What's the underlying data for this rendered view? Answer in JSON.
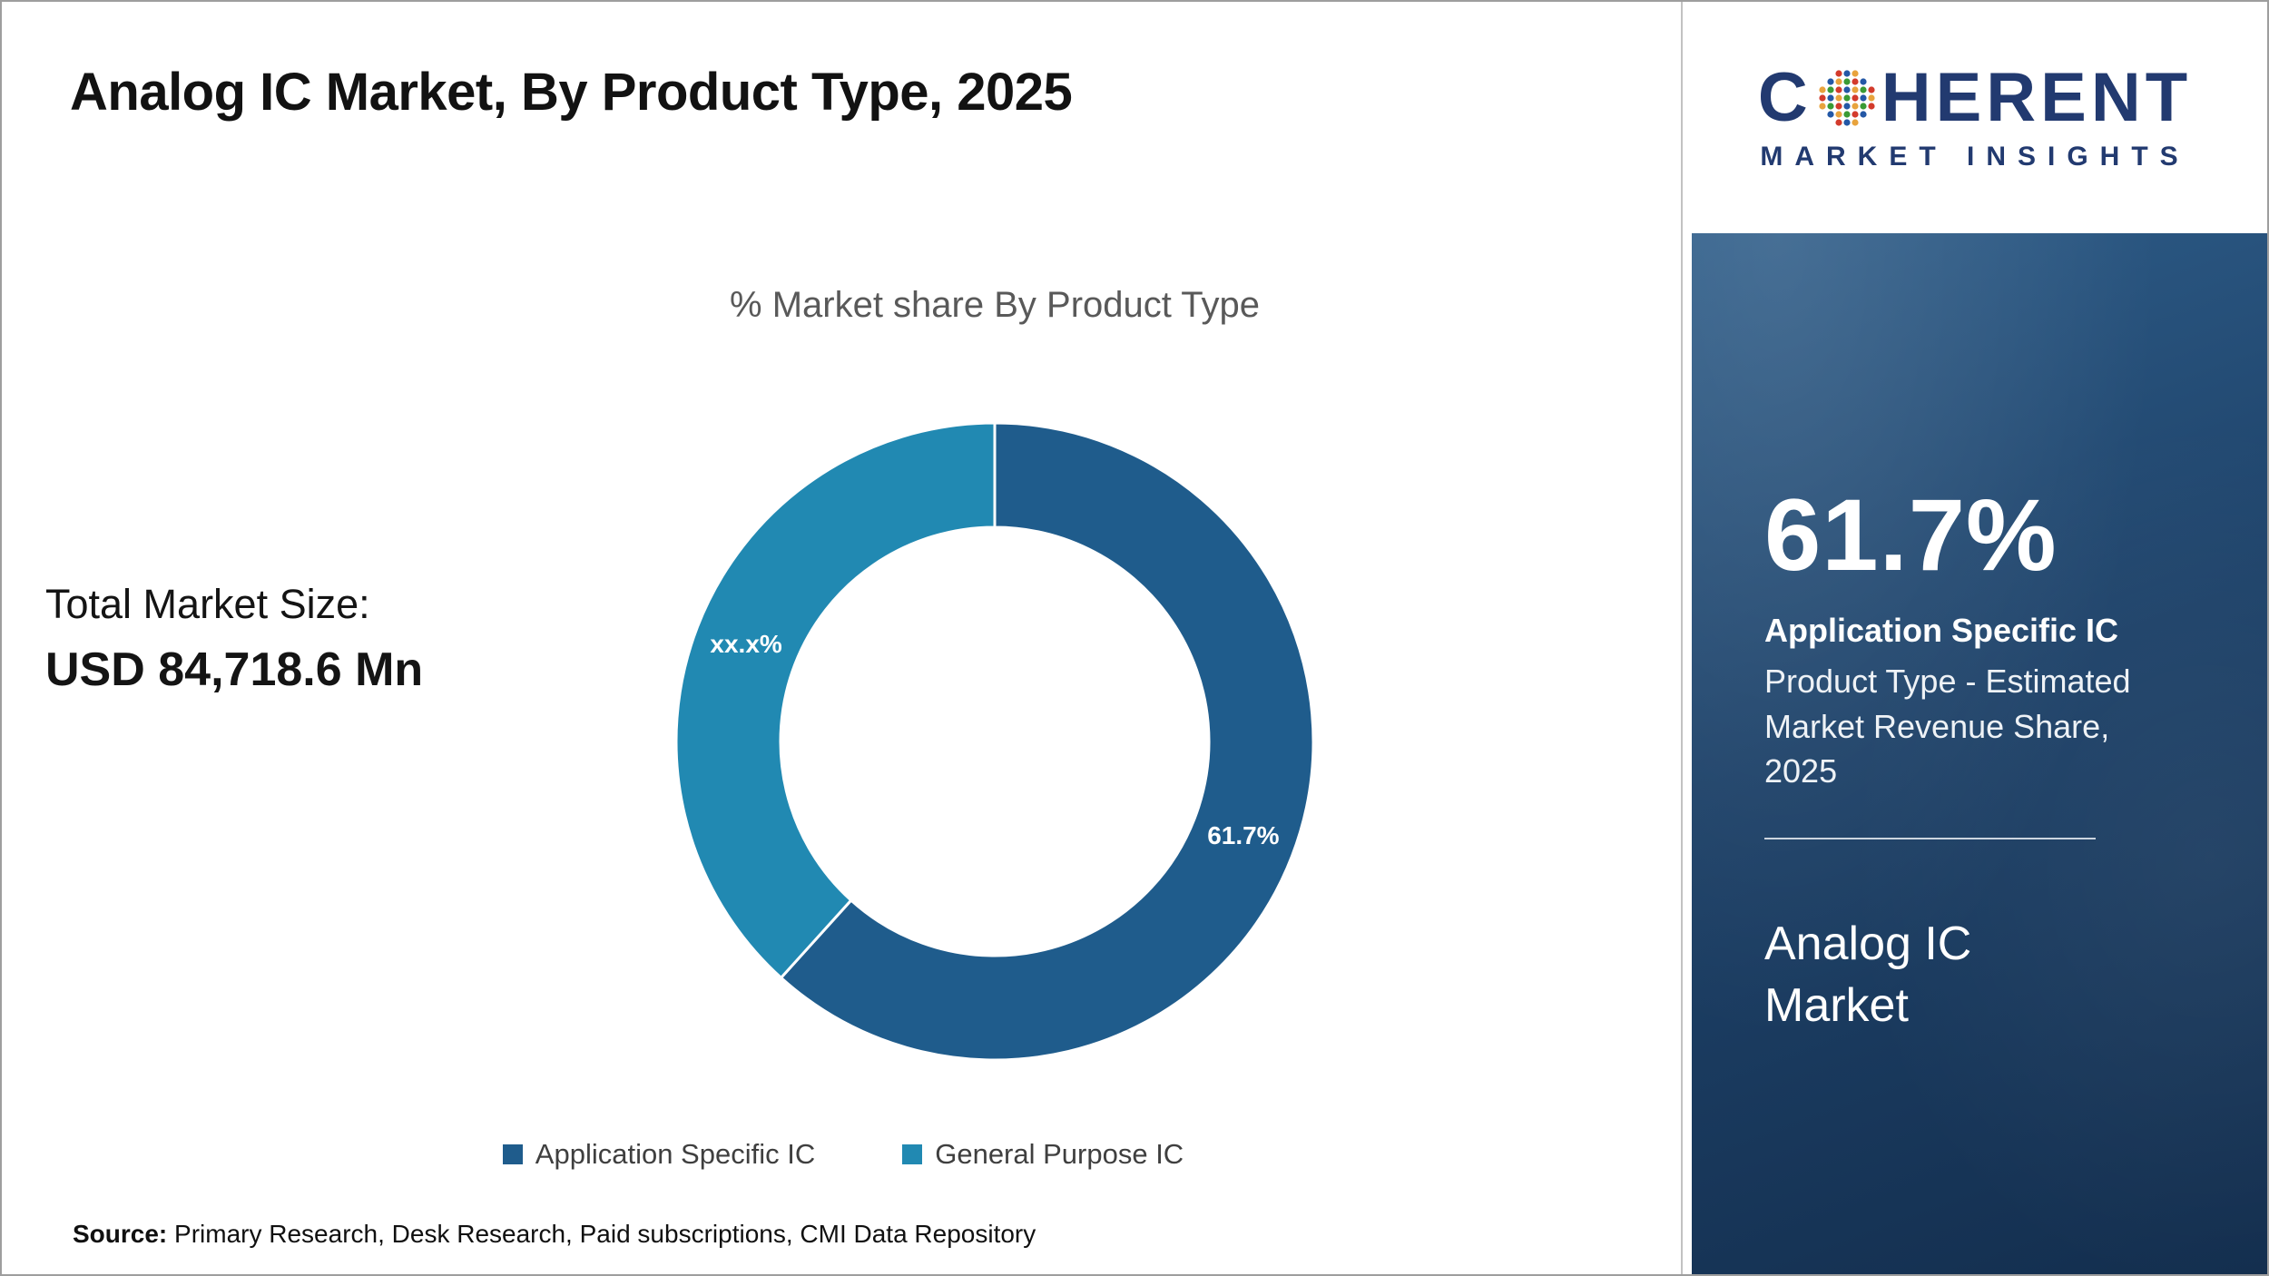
{
  "header": {
    "title": "Analog IC Market, By Product Type, 2025"
  },
  "market_size": {
    "label": "Total Market Size:",
    "value": "USD 84,718.6 Mn"
  },
  "chart_data": {
    "type": "pie",
    "variant": "donut",
    "title": "% Market share By Product Type",
    "series": [
      {
        "name": "Application Specific IC",
        "value": 61.7,
        "label": "61.7%",
        "color": "#1f5c8c"
      },
      {
        "name": "General Purpose IC",
        "value": 38.3,
        "label": "xx.x%",
        "color": "#2189b2"
      }
    ],
    "legend_position": "bottom",
    "hole_ratio": 0.67,
    "start_angle_deg": 0
  },
  "source": {
    "label": "Source:",
    "text": "Primary Research, Desk Research, Paid subscriptions, CMI Data Repository"
  },
  "logo": {
    "word_start": "C",
    "word_end": "HERENT",
    "subtitle": "MARKET INSIGHTS",
    "brand_color": "#223a70",
    "dot_colors": [
      "#3a9b35",
      "#d33b2c",
      "#2458a6",
      "#e8a33d"
    ]
  },
  "sidebar": {
    "stat_value": "61.7%",
    "stat_label": "Application Specific IC",
    "stat_description": "Product Type - Estimated Market Revenue Share, 2025",
    "market_name": "Analog IC Market",
    "background_color": "#1d4067"
  }
}
